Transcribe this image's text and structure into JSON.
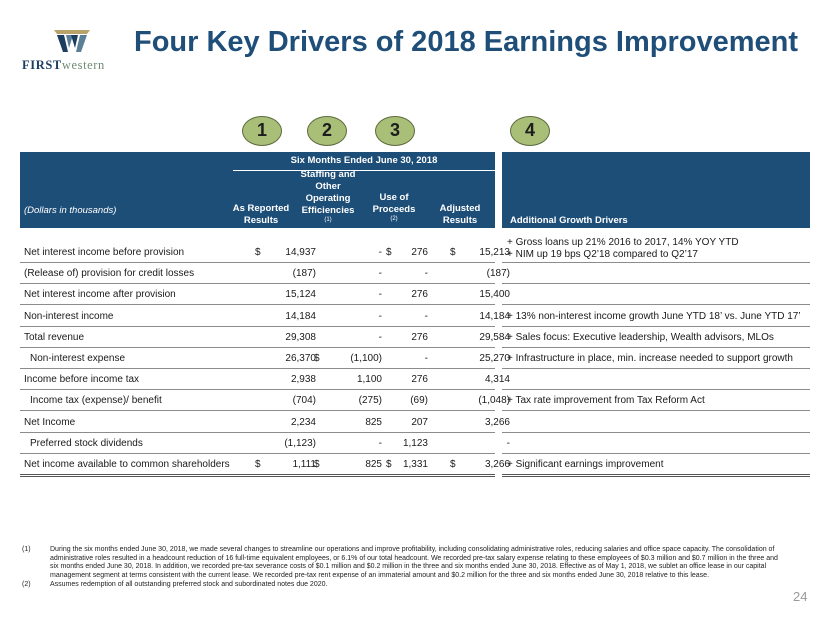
{
  "logo": {
    "text_bold": "FIRST",
    "text_light": "western"
  },
  "title": "Four Key Drivers of 2018 Earnings Improvement",
  "drivers": [
    "1",
    "2",
    "3",
    "4"
  ],
  "table": {
    "period_header": "Six Months Ended June 30, 2018",
    "unit_label": "(Dollars in thousands)",
    "columns": [
      {
        "label": "As Reported Results",
        "sup": ""
      },
      {
        "label": "Staffing and Other Operating Efficiencies",
        "sup": "(1)"
      },
      {
        "label": "Use of Proceeds",
        "sup": "(2)"
      },
      {
        "label": "Adjusted Results",
        "sup": ""
      }
    ],
    "growth_header": "Additional Growth Drivers",
    "rows": [
      {
        "label": "Net interest income before provision",
        "d1": "$",
        "v1": "14,937",
        "d2": "",
        "v2": "-",
        "d3": "$",
        "v3": "276",
        "d4": "$",
        "v4": "15,213",
        "notes": [
          "+ Gross loans up 21% 2016 to 2017, 14% YOY YTD",
          "+ NIM up 19 bps Q2’18 compared to Q2’17"
        ]
      },
      {
        "label": "(Release of) provision for credit losses",
        "d1": "",
        "v1": "(187)",
        "d2": "",
        "v2": "-",
        "d3": "",
        "v3": "-",
        "d4": "",
        "v4": "(187)",
        "notes": []
      },
      {
        "label": "Net interest income after provision",
        "d1": "",
        "v1": "15,124",
        "d2": "",
        "v2": "-",
        "d3": "",
        "v3": "276",
        "d4": "",
        "v4": "15,400",
        "notes": []
      },
      {
        "label": "Non-interest income",
        "d1": "",
        "v1": "14,184",
        "d2": "",
        "v2": "-",
        "d3": "",
        "v3": "-",
        "d4": "",
        "v4": "14,184",
        "notes": [
          "+ 13% non-interest income growth June YTD 18’ vs. June YTD 17’"
        ]
      },
      {
        "label": "Total revenue",
        "d1": "",
        "v1": "29,308",
        "d2": "",
        "v2": "-",
        "d3": "",
        "v3": "276",
        "d4": "",
        "v4": "29,584",
        "notes": [
          "+ Sales focus: Executive leadership, Wealth advisors, MLOs"
        ]
      },
      {
        "label": "Non-interest expense",
        "d1": "",
        "v1": "26,370",
        "d2": "$",
        "v2": "(1,100)",
        "d3": "",
        "v3": "-",
        "d4": "",
        "v4": "25,270",
        "notes": [
          "+ Infrastructure in place, min. increase needed to support growth"
        ]
      },
      {
        "label": "Income before income tax",
        "d1": "",
        "v1": "2,938",
        "d2": "",
        "v2": "1,100",
        "d3": "",
        "v3": "276",
        "d4": "",
        "v4": "4,314",
        "notes": []
      },
      {
        "label": "Income tax (expense)/ benefit",
        "d1": "",
        "v1": "(704)",
        "d2": "",
        "v2": "(275)",
        "d3": "",
        "v3": "(69)",
        "d4": "",
        "v4": "(1,048)",
        "notes": [
          "+ Tax rate improvement from Tax Reform Act"
        ]
      },
      {
        "label": "Net Income",
        "d1": "",
        "v1": "2,234",
        "d2": "",
        "v2": "825",
        "d3": "",
        "v3": "207",
        "d4": "",
        "v4": "3,266",
        "notes": []
      },
      {
        "label": "Preferred stock dividends",
        "d1": "",
        "v1": "(1,123)",
        "d2": "",
        "v2": "-",
        "d3": "",
        "v3": "1,123",
        "d4": "",
        "v4": "-",
        "notes": []
      },
      {
        "label": "Net income available to common shareholders",
        "d1": "$",
        "v1": "1,111",
        "d2": "$",
        "v2": "825",
        "d3": "$",
        "v3": "1,331",
        "d4": "$",
        "v4": "3,266",
        "notes": [
          "+ Significant earnings improvement"
        ]
      }
    ]
  },
  "footnotes": [
    {
      "num": "(1)",
      "text": "During the six months ended June 30, 2018, we made several changes to streamline our operations and improve profitability, including consolidating administrative roles, reducing salaries and office space capacity. The consolidation of administrative roles resulted in a headcount reduction of 16 full-time equivalent employees, or 6.1% of our total headcount. We recorded pre-tax salary expense relating to these employees of $0.3 million and $0.7 million in the three and six months ended June 30, 2018. In addition, we recorded pre-tax severance costs of $0.1 million and $0.2 million in the three and six months ended June 30, 2018. Effective as of May 1, 2018, we sublet an office lease in our capital management segment at terms consistent with the current lease. We recorded pre-tax rent expense of an immaterial amount and $0.2 million for the three and six months ended June 30, 2018 relative to this lease."
    },
    {
      "num": "(2)",
      "text": "Assumes redemption of all outstanding preferred stock and subordinated notes due 2020."
    }
  ],
  "page_number": "24",
  "colors": {
    "header_bg": "#1d4e78",
    "title": "#1f4e79",
    "circle": "#a9bf78"
  }
}
